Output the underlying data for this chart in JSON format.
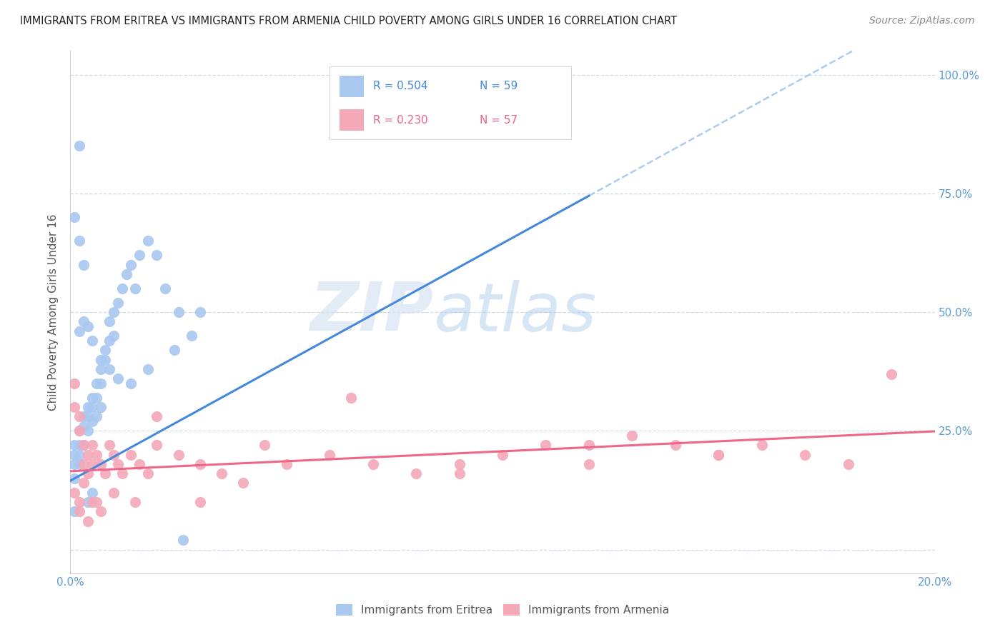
{
  "title": "IMMIGRANTS FROM ERITREA VS IMMIGRANTS FROM ARMENIA CHILD POVERTY AMONG GIRLS UNDER 16 CORRELATION CHART",
  "source": "Source: ZipAtlas.com",
  "ylabel": "Child Poverty Among Girls Under 16",
  "xlim": [
    0.0,
    0.2
  ],
  "ylim": [
    -0.05,
    1.05
  ],
  "yticks": [
    0.0,
    0.25,
    0.5,
    0.75,
    1.0
  ],
  "ytick_labels_right": [
    "",
    "25.0%",
    "50.0%",
    "75.0%",
    "100.0%"
  ],
  "xticks": [
    0.0,
    0.05,
    0.1,
    0.15,
    0.2
  ],
  "xtick_labels": [
    "0.0%",
    "",
    "",
    "",
    "20.0%"
  ],
  "eritrea_R": 0.504,
  "eritrea_N": 59,
  "armenia_R": 0.23,
  "armenia_N": 57,
  "eritrea_color": "#a8c8f0",
  "armenia_color": "#f4a8b8",
  "regression_eritrea_color": "#4488dd",
  "regression_armenia_color": "#ee6688",
  "dashed_color": "#aaccee",
  "watermark_zip": "ZIP",
  "watermark_atlas": "atlas",
  "eritrea_intercept": 0.145,
  "eritrea_slope": 5.0,
  "armenia_intercept": 0.165,
  "armenia_slope": 0.42,
  "eritrea_x": [
    0.001,
    0.001,
    0.001,
    0.001,
    0.002,
    0.002,
    0.002,
    0.002,
    0.003,
    0.003,
    0.003,
    0.004,
    0.004,
    0.004,
    0.005,
    0.005,
    0.005,
    0.006,
    0.006,
    0.006,
    0.007,
    0.007,
    0.007,
    0.008,
    0.008,
    0.009,
    0.009,
    0.01,
    0.01,
    0.011,
    0.012,
    0.013,
    0.014,
    0.015,
    0.016,
    0.018,
    0.02,
    0.022,
    0.025,
    0.028,
    0.03,
    0.002,
    0.003,
    0.004,
    0.005,
    0.007,
    0.009,
    0.011,
    0.014,
    0.018,
    0.024,
    0.001,
    0.002,
    0.003,
    0.002,
    0.004,
    0.005,
    0.026,
    0.001
  ],
  "eritrea_y": [
    0.22,
    0.2,
    0.18,
    0.15,
    0.25,
    0.22,
    0.2,
    0.18,
    0.28,
    0.26,
    0.22,
    0.3,
    0.28,
    0.25,
    0.32,
    0.3,
    0.27,
    0.35,
    0.32,
    0.28,
    0.38,
    0.35,
    0.3,
    0.4,
    0.42,
    0.44,
    0.48,
    0.5,
    0.45,
    0.52,
    0.55,
    0.58,
    0.6,
    0.55,
    0.62,
    0.65,
    0.62,
    0.55,
    0.5,
    0.45,
    0.5,
    0.46,
    0.48,
    0.47,
    0.44,
    0.4,
    0.38,
    0.36,
    0.35,
    0.38,
    0.42,
    0.7,
    0.65,
    0.6,
    0.85,
    0.1,
    0.12,
    0.02,
    0.08
  ],
  "armenia_x": [
    0.001,
    0.001,
    0.002,
    0.002,
    0.003,
    0.003,
    0.004,
    0.004,
    0.005,
    0.005,
    0.006,
    0.007,
    0.008,
    0.009,
    0.01,
    0.011,
    0.012,
    0.014,
    0.016,
    0.018,
    0.02,
    0.025,
    0.03,
    0.035,
    0.04,
    0.05,
    0.06,
    0.07,
    0.08,
    0.09,
    0.1,
    0.11,
    0.12,
    0.13,
    0.14,
    0.15,
    0.16,
    0.17,
    0.18,
    0.19,
    0.001,
    0.002,
    0.003,
    0.005,
    0.007,
    0.01,
    0.015,
    0.02,
    0.03,
    0.045,
    0.065,
    0.09,
    0.12,
    0.15,
    0.002,
    0.004,
    0.006
  ],
  "armenia_y": [
    0.35,
    0.3,
    0.28,
    0.25,
    0.22,
    0.18,
    0.2,
    0.16,
    0.22,
    0.18,
    0.2,
    0.18,
    0.16,
    0.22,
    0.2,
    0.18,
    0.16,
    0.2,
    0.18,
    0.16,
    0.22,
    0.2,
    0.18,
    0.16,
    0.14,
    0.18,
    0.2,
    0.18,
    0.16,
    0.18,
    0.2,
    0.22,
    0.18,
    0.24,
    0.22,
    0.2,
    0.22,
    0.2,
    0.18,
    0.37,
    0.12,
    0.1,
    0.14,
    0.1,
    0.08,
    0.12,
    0.1,
    0.28,
    0.1,
    0.22,
    0.32,
    0.16,
    0.22,
    0.2,
    0.08,
    0.06,
    0.1
  ]
}
